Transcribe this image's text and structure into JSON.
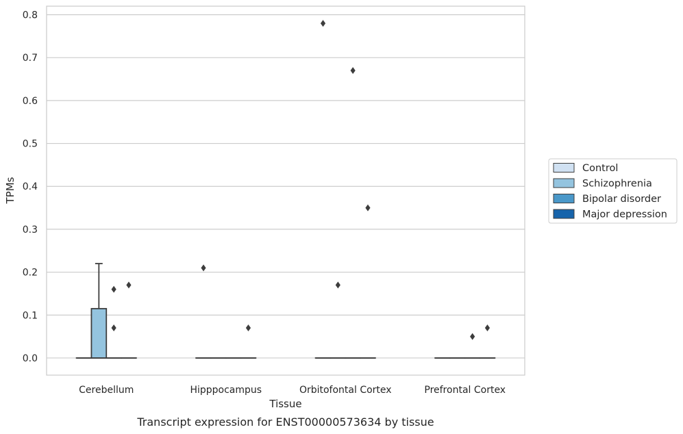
{
  "chart_data": {
    "type": "boxplot",
    "caption": "Transcript expression for ENST00000573634 by tissue",
    "xlabel": "Tissue",
    "ylabel": "TPMs",
    "ylim": [
      -0.04,
      0.82
    ],
    "yticks": [
      0.0,
      0.1,
      0.2,
      0.3,
      0.4,
      0.5,
      0.6,
      0.7,
      0.8
    ],
    "ytick_labels": [
      "0.0",
      "0.1",
      "0.2",
      "0.3",
      "0.4",
      "0.5",
      "0.6",
      "0.7",
      "0.8"
    ],
    "grid": "horizontal",
    "legend_position": "right",
    "categories": [
      "Cerebellum",
      "Hipppocampus",
      "Orbitofontal Cortex",
      "Prefrontal Cortex"
    ],
    "series": [
      {
        "name": "Control",
        "color": "#d0e1f2",
        "boxes": [
          {
            "q1": 0,
            "median": 0,
            "q3": 0,
            "whisker_low": 0,
            "whisker_high": 0,
            "outliers": []
          },
          {
            "q1": 0,
            "median": 0,
            "q3": 0,
            "whisker_low": 0,
            "whisker_high": 0,
            "outliers": [
              0.21
            ]
          },
          {
            "q1": 0,
            "median": 0,
            "q3": 0,
            "whisker_low": 0,
            "whisker_high": 0,
            "outliers": [
              0.78
            ]
          },
          {
            "q1": 0,
            "median": 0,
            "q3": 0,
            "whisker_low": 0,
            "whisker_high": 0,
            "outliers": []
          }
        ]
      },
      {
        "name": "Schizophrenia",
        "color": "#94c4df",
        "boxes": [
          {
            "q1": 0,
            "median": 0,
            "q3": 0.115,
            "whisker_low": 0,
            "whisker_high": 0.22,
            "outliers": []
          },
          {
            "q1": 0,
            "median": 0,
            "q3": 0,
            "whisker_low": 0,
            "whisker_high": 0,
            "outliers": []
          },
          {
            "q1": 0,
            "median": 0,
            "q3": 0,
            "whisker_low": 0,
            "whisker_high": 0,
            "outliers": [
              0.17
            ]
          },
          {
            "q1": 0,
            "median": 0,
            "q3": 0,
            "whisker_low": 0,
            "whisker_high": 0,
            "outliers": []
          }
        ]
      },
      {
        "name": "Bipolar disorder",
        "color": "#4a98c9",
        "boxes": [
          {
            "q1": 0,
            "median": 0,
            "q3": 0,
            "whisker_low": 0,
            "whisker_high": 0,
            "outliers": [
              0.16,
              0.07
            ]
          },
          {
            "q1": 0,
            "median": 0,
            "q3": 0,
            "whisker_low": 0,
            "whisker_high": 0,
            "outliers": []
          },
          {
            "q1": 0,
            "median": 0,
            "q3": 0,
            "whisker_low": 0,
            "whisker_high": 0,
            "outliers": [
              0.67
            ]
          },
          {
            "q1": 0,
            "median": 0,
            "q3": 0,
            "whisker_low": 0,
            "whisker_high": 0,
            "outliers": [
              0.05
            ]
          }
        ]
      },
      {
        "name": "Major depression",
        "color": "#1764ab",
        "boxes": [
          {
            "q1": 0,
            "median": 0,
            "q3": 0,
            "whisker_low": 0,
            "whisker_high": 0,
            "outliers": [
              0.17
            ]
          },
          {
            "q1": 0,
            "median": 0,
            "q3": 0,
            "whisker_low": 0,
            "whisker_high": 0,
            "outliers": [
              0.07
            ]
          },
          {
            "q1": 0,
            "median": 0,
            "q3": 0,
            "whisker_low": 0,
            "whisker_high": 0,
            "outliers": [
              0.35
            ]
          },
          {
            "q1": 0,
            "median": 0,
            "q3": 0,
            "whisker_low": 0,
            "whisker_high": 0,
            "outliers": [
              0.07
            ]
          }
        ]
      }
    ]
  }
}
